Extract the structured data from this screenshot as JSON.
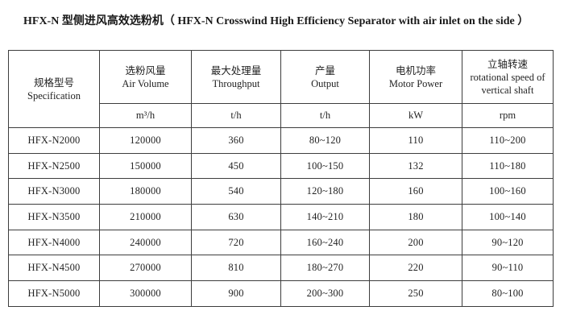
{
  "title": "HFX-N 型侧进风高效选粉机（ HFX-N Crosswind High Efficiency Separator with air inlet on the side ）",
  "table": {
    "columns": [
      {
        "zh": "规格型号",
        "en": "Specification",
        "unit": ""
      },
      {
        "zh": "选粉风量",
        "en": "Air Volume",
        "unit": "m³/h"
      },
      {
        "zh": "最大处理量",
        "en": "Throughput",
        "unit": "t/h"
      },
      {
        "zh": "产量",
        "en": "Output",
        "unit": "t/h"
      },
      {
        "zh": "电机功率",
        "en": "Motor Power",
        "unit": "kW"
      },
      {
        "zh": "立轴转速",
        "en": "rotational speed of vertical shaft",
        "unit": "rpm"
      }
    ],
    "rows": [
      [
        "HFX-N2000",
        "120000",
        "360",
        "80~120",
        "110",
        "110~200"
      ],
      [
        "HFX-N2500",
        "150000",
        "450",
        "100~150",
        "132",
        "110~180"
      ],
      [
        "HFX-N3000",
        "180000",
        "540",
        "120~180",
        "160",
        "100~160"
      ],
      [
        "HFX-N3500",
        "210000",
        "630",
        "140~210",
        "180",
        "100~140"
      ],
      [
        "HFX-N4000",
        "240000",
        "720",
        "160~240",
        "200",
        "90~120"
      ],
      [
        "HFX-N4500",
        "270000",
        "810",
        "180~270",
        "220",
        "90~110"
      ],
      [
        "HFX-N5000",
        "300000",
        "900",
        "200~300",
        "250",
        "80~100"
      ]
    ]
  }
}
